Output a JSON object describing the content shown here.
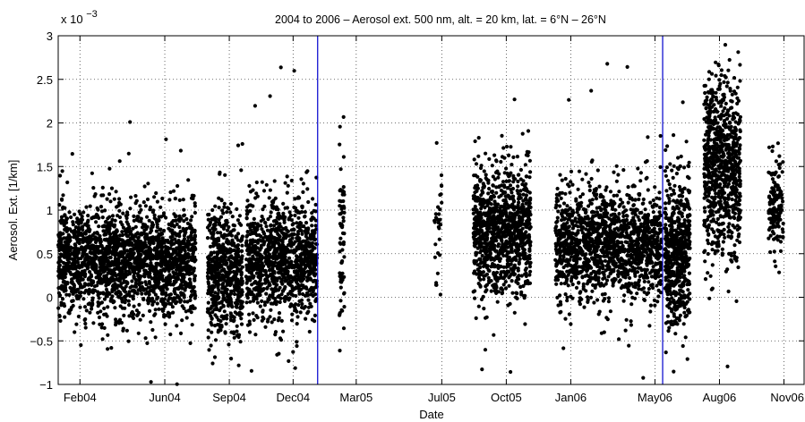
{
  "chart_data": {
    "type": "scatter",
    "title": "2004 to 2006 – Aerosol ext. 500 nm, alt. = 20 km, lat. = 6°N – 26°N",
    "xlabel": "Date",
    "ylabel": "Aerosol. Ext. [1/km]",
    "y_multiplier_label": "x 10",
    "y_multiplier_exponent": "−3",
    "ylim": [
      -1,
      3
    ],
    "xlim": [
      "2004-01-01",
      "2006-12-01"
    ],
    "x_tick_labels": [
      "Feb04",
      "Jun04",
      "Sep04",
      "Dec04",
      "Mar05",
      "Jul05",
      "Oct05",
      "Jan06",
      "May06",
      "Aug06",
      "Nov06"
    ],
    "x_tick_dates": [
      "2004-02-01",
      "2004-06-01",
      "2004-09-01",
      "2004-12-01",
      "2005-03-01",
      "2005-07-01",
      "2005-10-01",
      "2006-01-01",
      "2006-05-01",
      "2006-08-01",
      "2006-11-01"
    ],
    "y_tick_labels": [
      "−1",
      "−0.5",
      "0",
      "0.5",
      "1",
      "1.5",
      "2",
      "2.5",
      "3"
    ],
    "y_tick_values": [
      -1,
      -0.5,
      0,
      0.5,
      1,
      1.5,
      2,
      2.5,
      3
    ],
    "grid": true,
    "vertical_lines": [
      {
        "date": "2005-01-05",
        "color": "#0000cc"
      },
      {
        "date": "2006-05-12",
        "color": "#0000cc"
      }
    ],
    "marker_color": "#000000",
    "series": [
      {
        "points": [
          {
            "start": "2004-01-01",
            "end": "2004-04-30",
            "center": 0.42,
            "spread": 0.3,
            "n": 1300
          },
          {
            "start": "2004-05-01",
            "end": "2004-07-15",
            "center": 0.38,
            "spread": 0.3,
            "n": 800
          },
          {
            "start": "2004-08-01",
            "end": "2004-09-20",
            "center": 0.3,
            "spread": 0.35,
            "n": 600
          },
          {
            "start": "2004-09-25",
            "end": "2005-01-04",
            "center": 0.42,
            "spread": 0.32,
            "n": 1100
          },
          {
            "start": "2005-02-05",
            "end": "2005-02-12",
            "center": 0.8,
            "spread": 0.5,
            "n": 70
          },
          {
            "start": "2005-06-20",
            "end": "2005-07-01",
            "center": 0.75,
            "spread": 0.3,
            "n": 30
          },
          {
            "start": "2005-08-15",
            "end": "2005-11-05",
            "center": 0.75,
            "spread": 0.35,
            "n": 1000
          },
          {
            "start": "2005-12-10",
            "end": "2006-05-10",
            "center": 0.6,
            "spread": 0.3,
            "n": 1500
          },
          {
            "start": "2006-05-15",
            "end": "2006-06-20",
            "center": 0.5,
            "spread": 0.4,
            "n": 600
          },
          {
            "start": "2006-07-10",
            "end": "2006-08-31",
            "center": 1.5,
            "spread": 0.5,
            "n": 800
          },
          {
            "start": "2006-10-10",
            "end": "2006-10-31",
            "center": 1.05,
            "spread": 0.25,
            "n": 150
          }
        ]
      }
    ]
  }
}
